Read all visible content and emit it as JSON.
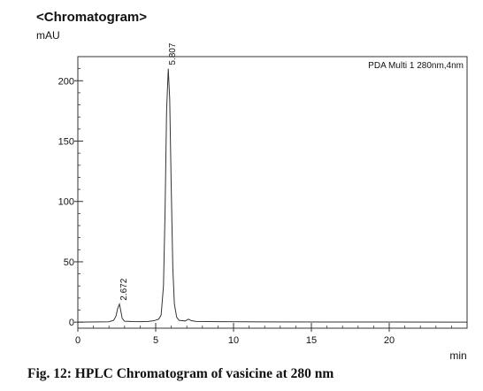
{
  "chart_data": {
    "type": "line",
    "title": "<Chromatogram>",
    "ylabel": "mAU",
    "xlabel": "min",
    "xlim": [
      0,
      25
    ],
    "ylim": [
      -5,
      220
    ],
    "x_ticks": [
      0,
      5,
      10,
      15,
      20
    ],
    "y_ticks": [
      0,
      50,
      100,
      150,
      200
    ],
    "legend": "PDA Multi 1 280nm,4nm",
    "legend_position": "top-right",
    "grid": false,
    "peaks": [
      {
        "label": "2.672",
        "x": 2.672,
        "y": 15
      },
      {
        "label": "5.807",
        "x": 5.807,
        "y": 210
      }
    ],
    "series": [
      {
        "name": "PDA Multi 1 280nm,4nm",
        "points": [
          [
            0,
            0
          ],
          [
            2.0,
            0.3
          ],
          [
            2.3,
            1.5
          ],
          [
            2.45,
            5
          ],
          [
            2.55,
            11
          ],
          [
            2.672,
            15
          ],
          [
            2.75,
            10
          ],
          [
            2.85,
            3
          ],
          [
            3.0,
            0.8
          ],
          [
            3.5,
            0.5
          ],
          [
            4.0,
            0.4
          ],
          [
            4.5,
            0.6
          ],
          [
            4.9,
            1.2
          ],
          [
            5.2,
            2.5
          ],
          [
            5.35,
            6
          ],
          [
            5.5,
            30
          ],
          [
            5.6,
            90
          ],
          [
            5.7,
            175
          ],
          [
            5.807,
            210
          ],
          [
            5.9,
            185
          ],
          [
            6.0,
            110
          ],
          [
            6.1,
            45
          ],
          [
            6.2,
            15
          ],
          [
            6.35,
            4
          ],
          [
            6.5,
            1.5
          ],
          [
            6.9,
            1.0
          ],
          [
            7.1,
            2.5
          ],
          [
            7.3,
            1.2
          ],
          [
            7.6,
            0.6
          ],
          [
            9.0,
            0.4
          ],
          [
            12.0,
            0.2
          ],
          [
            16.0,
            0.1
          ],
          [
            20.0,
            0.1
          ],
          [
            25.0,
            0
          ]
        ]
      }
    ]
  },
  "caption": "Fig. 12: HPLC Chromatogram of vasicine at 280 nm"
}
